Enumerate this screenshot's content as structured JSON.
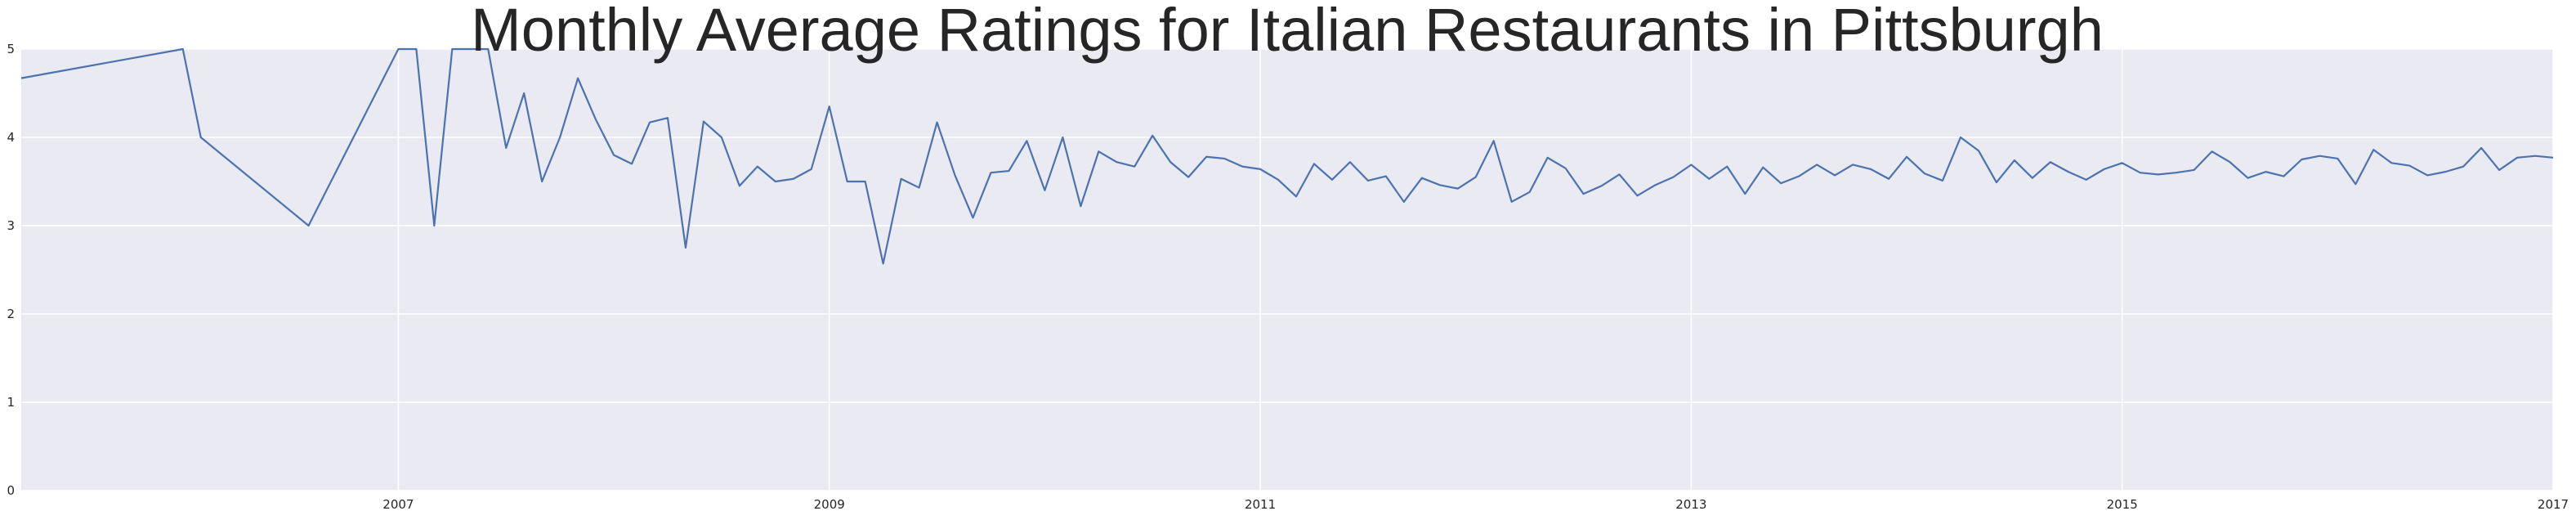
{
  "chart_data": {
    "type": "line",
    "title": "Monthly Average Ratings for Italian Restaurants in Pittsburgh",
    "xlabel": "",
    "ylabel": "",
    "xlim": [
      "2005-04",
      "2017-01"
    ],
    "ylim": [
      0,
      5
    ],
    "x_ticks": [
      "2007",
      "2009",
      "2011",
      "2013",
      "2015",
      "2017"
    ],
    "y_ticks": [
      "0",
      "1",
      "2",
      "3",
      "4",
      "5"
    ],
    "grid": true,
    "legend": "none",
    "colors": {
      "background": "#eaeaf2",
      "grid": "#ffffff",
      "line": "#4c72b0",
      "text": "#262626"
    },
    "series": [
      {
        "x": [
          "2005-04",
          "2006-01",
          "2006-02",
          "2006-08",
          "2007-01",
          "2007-02",
          "2007-03",
          "2007-04",
          "2007-06",
          "2007-07",
          "2007-08",
          "2007-09",
          "2007-10",
          "2007-11",
          "2007-12",
          "2008-01",
          "2008-02",
          "2008-03",
          "2008-04",
          "2008-05",
          "2008-06",
          "2008-07",
          "2008-08",
          "2008-09",
          "2008-10",
          "2008-11",
          "2008-12",
          "2009-01",
          "2009-02",
          "2009-03",
          "2009-04",
          "2009-05",
          "2009-06",
          "2009-07",
          "2009-08",
          "2009-09",
          "2009-10",
          "2009-11",
          "2009-12",
          "2010-01",
          "2010-02",
          "2010-03",
          "2010-04",
          "2010-05",
          "2010-06",
          "2010-07",
          "2010-08",
          "2010-09",
          "2010-10",
          "2010-11",
          "2010-12",
          "2011-01",
          "2011-02",
          "2011-03",
          "2011-04",
          "2011-05",
          "2011-06",
          "2011-07",
          "2011-08",
          "2011-09",
          "2011-10",
          "2011-11",
          "2011-12",
          "2012-01",
          "2012-02",
          "2012-03",
          "2012-04",
          "2012-05",
          "2012-06",
          "2012-07",
          "2012-08",
          "2012-09",
          "2012-10",
          "2012-11",
          "2012-12",
          "2013-01",
          "2013-02",
          "2013-03",
          "2013-04",
          "2013-05",
          "2013-06",
          "2013-07",
          "2013-08",
          "2013-09",
          "2013-10",
          "2013-11",
          "2013-12",
          "2014-01",
          "2014-02",
          "2014-03",
          "2014-04",
          "2014-05",
          "2014-06",
          "2014-07",
          "2014-08",
          "2014-09",
          "2014-10",
          "2014-11",
          "2014-12",
          "2015-01",
          "2015-02",
          "2015-03",
          "2015-04",
          "2015-05",
          "2015-06",
          "2015-07",
          "2015-08",
          "2015-09",
          "2015-10",
          "2015-11",
          "2015-12",
          "2016-01",
          "2016-02",
          "2016-03",
          "2016-04",
          "2016-05",
          "2016-06",
          "2016-07",
          "2016-08",
          "2016-09",
          "2016-10",
          "2016-11",
          "2016-12",
          "2017-01"
        ],
        "y": [
          4.67,
          5.0,
          4.0,
          3.0,
          5.0,
          5.0,
          3.0,
          5.0,
          5.0,
          3.88,
          4.5,
          3.5,
          4.0,
          4.67,
          4.2,
          3.8,
          3.7,
          4.17,
          4.22,
          2.75,
          4.18,
          4.0,
          3.45,
          3.67,
          3.5,
          3.53,
          3.64,
          4.35,
          3.5,
          3.5,
          2.57,
          3.53,
          3.43,
          4.17,
          3.57,
          3.09,
          3.6,
          3.62,
          3.96,
          3.4,
          4.0,
          3.22,
          3.84,
          3.72,
          3.67,
          4.02,
          3.72,
          3.55,
          3.78,
          3.76,
          3.67,
          3.64,
          3.52,
          3.33,
          3.7,
          3.52,
          3.72,
          3.51,
          3.56,
          3.27,
          3.54,
          3.46,
          3.42,
          3.55,
          3.96,
          3.27,
          3.38,
          3.77,
          3.65,
          3.36,
          3.45,
          3.58,
          3.34,
          3.46,
          3.55,
          3.69,
          3.53,
          3.67,
          3.36,
          3.66,
          3.48,
          3.56,
          3.69,
          3.57,
          3.69,
          3.64,
          3.53,
          3.78,
          3.59,
          3.51,
          4.0,
          3.85,
          3.49,
          3.74,
          3.54,
          3.72,
          3.61,
          3.52,
          3.64,
          3.71,
          3.6,
          3.58,
          3.6,
          3.63,
          3.84,
          3.72,
          3.54,
          3.61,
          3.56,
          3.75,
          3.79,
          3.76,
          3.47,
          3.86,
          3.71,
          3.68,
          3.57,
          3.61,
          3.67,
          3.88,
          3.63,
          3.77,
          3.79,
          3.77
        ]
      }
    ]
  }
}
